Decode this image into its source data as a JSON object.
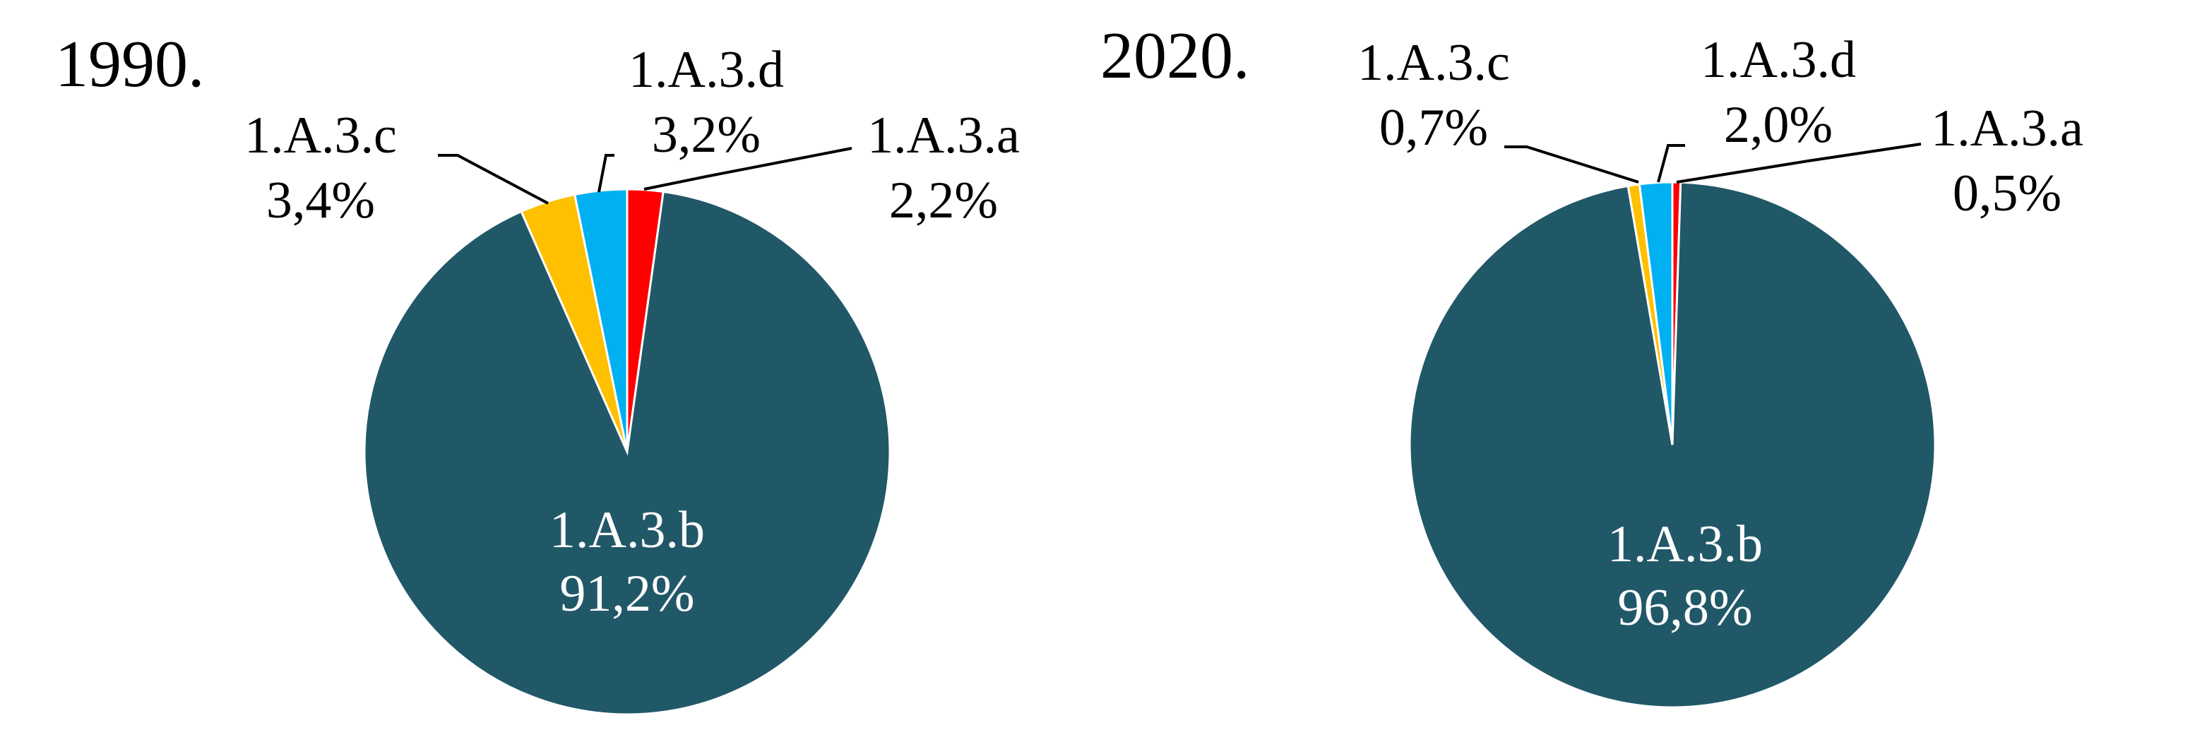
{
  "chart_data": [
    {
      "type": "pie",
      "title": "1990.",
      "slices": [
        {
          "label": "1.A.3.a",
          "value": 2.2,
          "value_label": "2,2%",
          "color": "#FF0000"
        },
        {
          "label": "1.A.3.b",
          "value": 91.2,
          "value_label": "91,2%",
          "color": "#215868"
        },
        {
          "label": "1.A.3.c",
          "value": 3.4,
          "value_label": "3,4%",
          "color": "#FFC000"
        },
        {
          "label": "1.A.3.d",
          "value": 3.2,
          "value_label": "3,2%",
          "color": "#00B0F0"
        }
      ]
    },
    {
      "type": "pie",
      "title": "2020.",
      "slices": [
        {
          "label": "1.A.3.a",
          "value": 0.5,
          "value_label": "0,5%",
          "color": "#FF0000"
        },
        {
          "label": "1.A.3.b",
          "value": 96.8,
          "value_label": "96,8%",
          "color": "#215868"
        },
        {
          "label": "1.A.3.c",
          "value": 0.7,
          "value_label": "0,7%",
          "color": "#FFC000"
        },
        {
          "label": "1.A.3.d",
          "value": 2.0,
          "value_label": "2,0%",
          "color": "#00B0F0"
        }
      ]
    }
  ]
}
